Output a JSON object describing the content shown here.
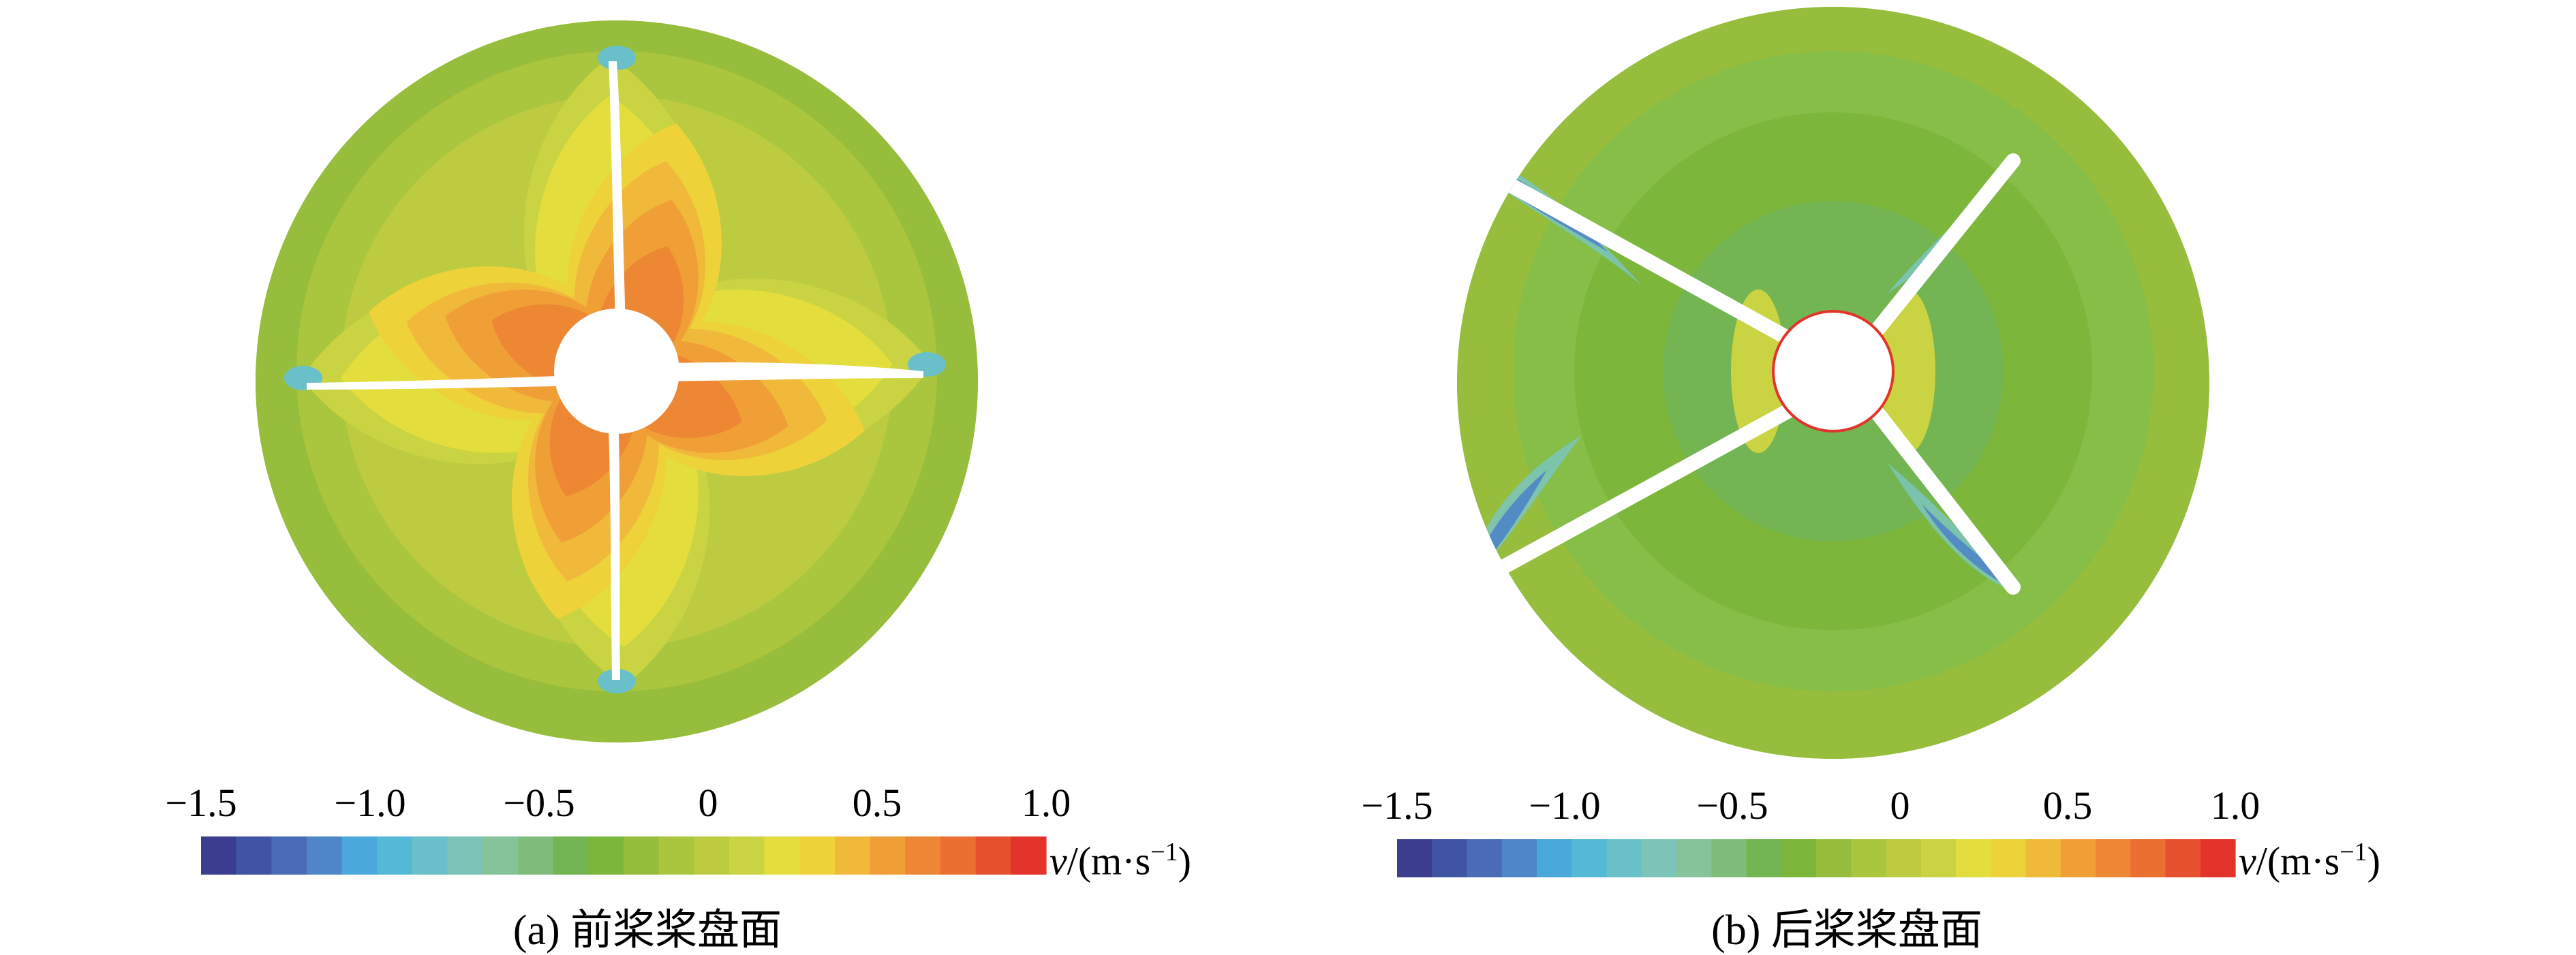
{
  "chart_data": [
    {
      "type": "heatmap",
      "caption": "(a) 前桨桨盘面",
      "colorbar": {
        "range": [
          -1.5,
          1.0
        ],
        "ticks": [
          -1.5,
          -1.0,
          -0.5,
          0,
          0.5,
          1.0
        ],
        "tick_labels": [
          "−1.5",
          "−1.0",
          "−0.5",
          "0",
          "0.5",
          "1.0"
        ],
        "variable": "v",
        "unit": "/(m·s",
        "unit_exponent": "−1",
        "unit_close": ")"
      },
      "blades": 4,
      "blade_angles_deg": [
        0,
        90,
        180,
        270
      ]
    },
    {
      "type": "heatmap",
      "caption": "(b) 后桨桨盘面",
      "colorbar": {
        "range": [
          -1.5,
          1.0
        ],
        "ticks": [
          -1.5,
          -1.0,
          -0.5,
          0,
          0.5,
          1.0
        ],
        "tick_labels": [
          "−1.5",
          "−1.0",
          "−0.5",
          "0",
          "0.5",
          "1.0"
        ],
        "variable": "v",
        "unit": "/(m·s",
        "unit_exponent": "−1",
        "unit_close": ")"
      },
      "blades": 4,
      "blade_angles_deg": [
        45,
        135,
        225,
        315
      ]
    }
  ],
  "colorbar_colors": [
    "#3b3e8f",
    "#3f54a3",
    "#4a6bb5",
    "#4f86c7",
    "#4ba8da",
    "#54b9d6",
    "#6ac0c8",
    "#7cc4b7",
    "#86c29a",
    "#80bd7c",
    "#72b552",
    "#7cb63a",
    "#96bd3c",
    "#aac53e",
    "#bccb3f",
    "#cad341",
    "#e3de3d",
    "#eed23a",
    "#f0b93a",
    "#f09f37",
    "#ee8734",
    "#ec6f32",
    "#e7502f",
    "#e3342b"
  ],
  "colors": {
    "field": "#8cc14a",
    "ring": "#a9cc4a"
  }
}
